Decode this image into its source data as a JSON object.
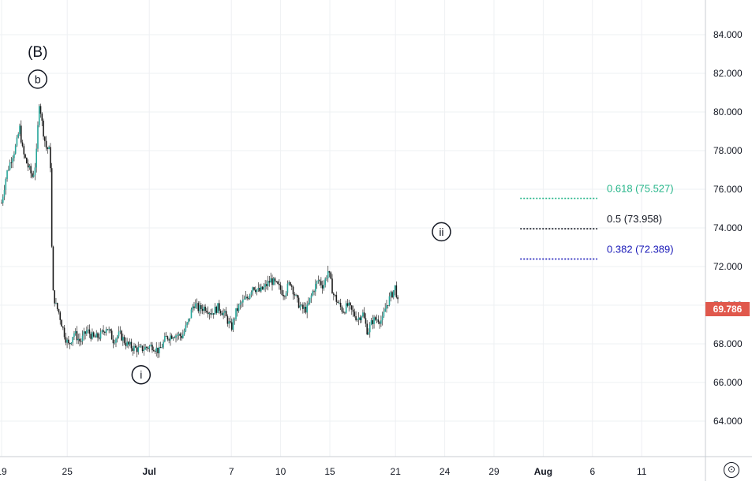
{
  "chart_data": {
    "type": "candlestick",
    "y_ticks": [
      "64.000",
      "66.000",
      "68.000",
      "70.000",
      "72.000",
      "74.000",
      "76.000",
      "78.000",
      "80.000",
      "82.000",
      "84.000"
    ],
    "ylim": [
      62.0,
      86.0
    ],
    "x_ticks": [
      {
        "label": "19",
        "day": 0,
        "bold": false
      },
      {
        "label": "25",
        "day": 4,
        "bold": false
      },
      {
        "label": "Jul",
        "day": 9,
        "bold": true
      },
      {
        "label": "7",
        "day": 14,
        "bold": false
      },
      {
        "label": "10",
        "day": 17,
        "bold": false
      },
      {
        "label": "15",
        "day": 20,
        "bold": false
      },
      {
        "label": "21",
        "day": 24,
        "bold": false
      },
      {
        "label": "24",
        "day": 27,
        "bold": false
      },
      {
        "label": "29",
        "day": 30,
        "bold": false
      },
      {
        "label": "Aug",
        "day": 33,
        "bold": true
      },
      {
        "label": "6",
        "day": 36,
        "bold": false
      },
      {
        "label": "11",
        "day": 39,
        "bold": false
      }
    ],
    "grid": true,
    "last_price": {
      "value": 69.786,
      "label": "69.786",
      "color": "#e0584c"
    },
    "path": [
      [
        0,
        75.3
      ],
      [
        0.3,
        76.8
      ],
      [
        0.6,
        77.6
      ],
      [
        0.9,
        78.3
      ],
      [
        1.1,
        79.2
      ],
      [
        1.3,
        77.9
      ],
      [
        1.6,
        77.2
      ],
      [
        1.9,
        76.6
      ],
      [
        2.1,
        77.5
      ],
      [
        2.3,
        80.6
      ],
      [
        2.5,
        79.2
      ],
      [
        2.7,
        78.2
      ],
      [
        2.9,
        78.0
      ],
      [
        3.0,
        77.0
      ],
      [
        3.05,
        73.5
      ],
      [
        3.1,
        70.8
      ],
      [
        3.3,
        70.0
      ],
      [
        3.5,
        69.6
      ],
      [
        3.7,
        68.9
      ],
      [
        3.9,
        68.3
      ],
      [
        4.1,
        67.9
      ],
      [
        4.4,
        68.6
      ],
      [
        4.8,
        68.1
      ],
      [
        5.2,
        68.7
      ],
      [
        5.6,
        68.3
      ],
      [
        6.0,
        68.4
      ],
      [
        6.4,
        68.9
      ],
      [
        6.8,
        68.2
      ],
      [
        7.2,
        68.5
      ],
      [
        7.6,
        68.0
      ],
      [
        8.0,
        67.8
      ],
      [
        8.4,
        67.7
      ],
      [
        8.8,
        67.8
      ],
      [
        9.2,
        67.9
      ],
      [
        9.6,
        67.6
      ],
      [
        10.0,
        68.3
      ],
      [
        10.5,
        68.5
      ],
      [
        11.0,
        68.4
      ],
      [
        11.4,
        69.2
      ],
      [
        11.7,
        70.1
      ],
      [
        12.0,
        69.8
      ],
      [
        12.4,
        69.9
      ],
      [
        12.8,
        69.6
      ],
      [
        13.2,
        69.9
      ],
      [
        13.6,
        69.5
      ],
      [
        14.0,
        68.8
      ],
      [
        14.3,
        69.7
      ],
      [
        14.6,
        70.1
      ],
      [
        15.0,
        70.4
      ],
      [
        15.3,
        71.0
      ],
      [
        15.7,
        70.7
      ],
      [
        16.0,
        70.9
      ],
      [
        16.4,
        71.3
      ],
      [
        16.8,
        71.0
      ],
      [
        17.2,
        70.6
      ],
      [
        17.6,
        71.2
      ],
      [
        18.0,
        70.2
      ],
      [
        18.3,
        69.8
      ],
      [
        18.6,
        69.8
      ],
      [
        19.0,
        70.8
      ],
      [
        19.3,
        71.3
      ],
      [
        19.6,
        71.0
      ],
      [
        19.9,
        71.8
      ],
      [
        20.2,
        70.6
      ],
      [
        20.5,
        70.1
      ],
      [
        20.8,
        69.7
      ],
      [
        21.1,
        70.0
      ],
      [
        21.4,
        69.6
      ],
      [
        21.7,
        69.3
      ],
      [
        22.0,
        69.6
      ],
      [
        22.3,
        68.6
      ],
      [
        22.6,
        69.2
      ],
      [
        22.9,
        69.3
      ],
      [
        23.2,
        69.2
      ],
      [
        23.4,
        69.9
      ],
      [
        23.6,
        70.3
      ],
      [
        23.8,
        70.6
      ],
      [
        24.0,
        71.0
      ],
      [
        24.1,
        70.3
      ],
      [
        24.2,
        69.8
      ]
    ],
    "bounds": [
      0,
      24.2
    ],
    "fibonacci": [
      {
        "level": "0.618",
        "value": 75.527,
        "label": "0.618 (75.527)",
        "color": "#26b68a"
      },
      {
        "level": "0.5",
        "value": 73.958,
        "label": "0.5 (73.958)",
        "color": "#131722"
      },
      {
        "level": "0.382",
        "value": 72.389,
        "label": "0.382 (72.389)",
        "color": "#1a1ab8"
      }
    ],
    "fib_range": [
      31.6,
      36.3
    ],
    "annotations": [
      {
        "text": "(B)",
        "day": 2.2,
        "value": 83.1,
        "circled": false
      },
      {
        "text": "b",
        "day": 2.2,
        "value": 81.7,
        "circled": true
      },
      {
        "text": "i",
        "day": 8.5,
        "value": 66.4,
        "circled": true
      },
      {
        "text": "ii",
        "day": 26.8,
        "value": 73.8,
        "circled": true
      }
    ]
  },
  "ui": {
    "settings_icon": "settings-icon",
    "settings_glyph": "⊙"
  }
}
